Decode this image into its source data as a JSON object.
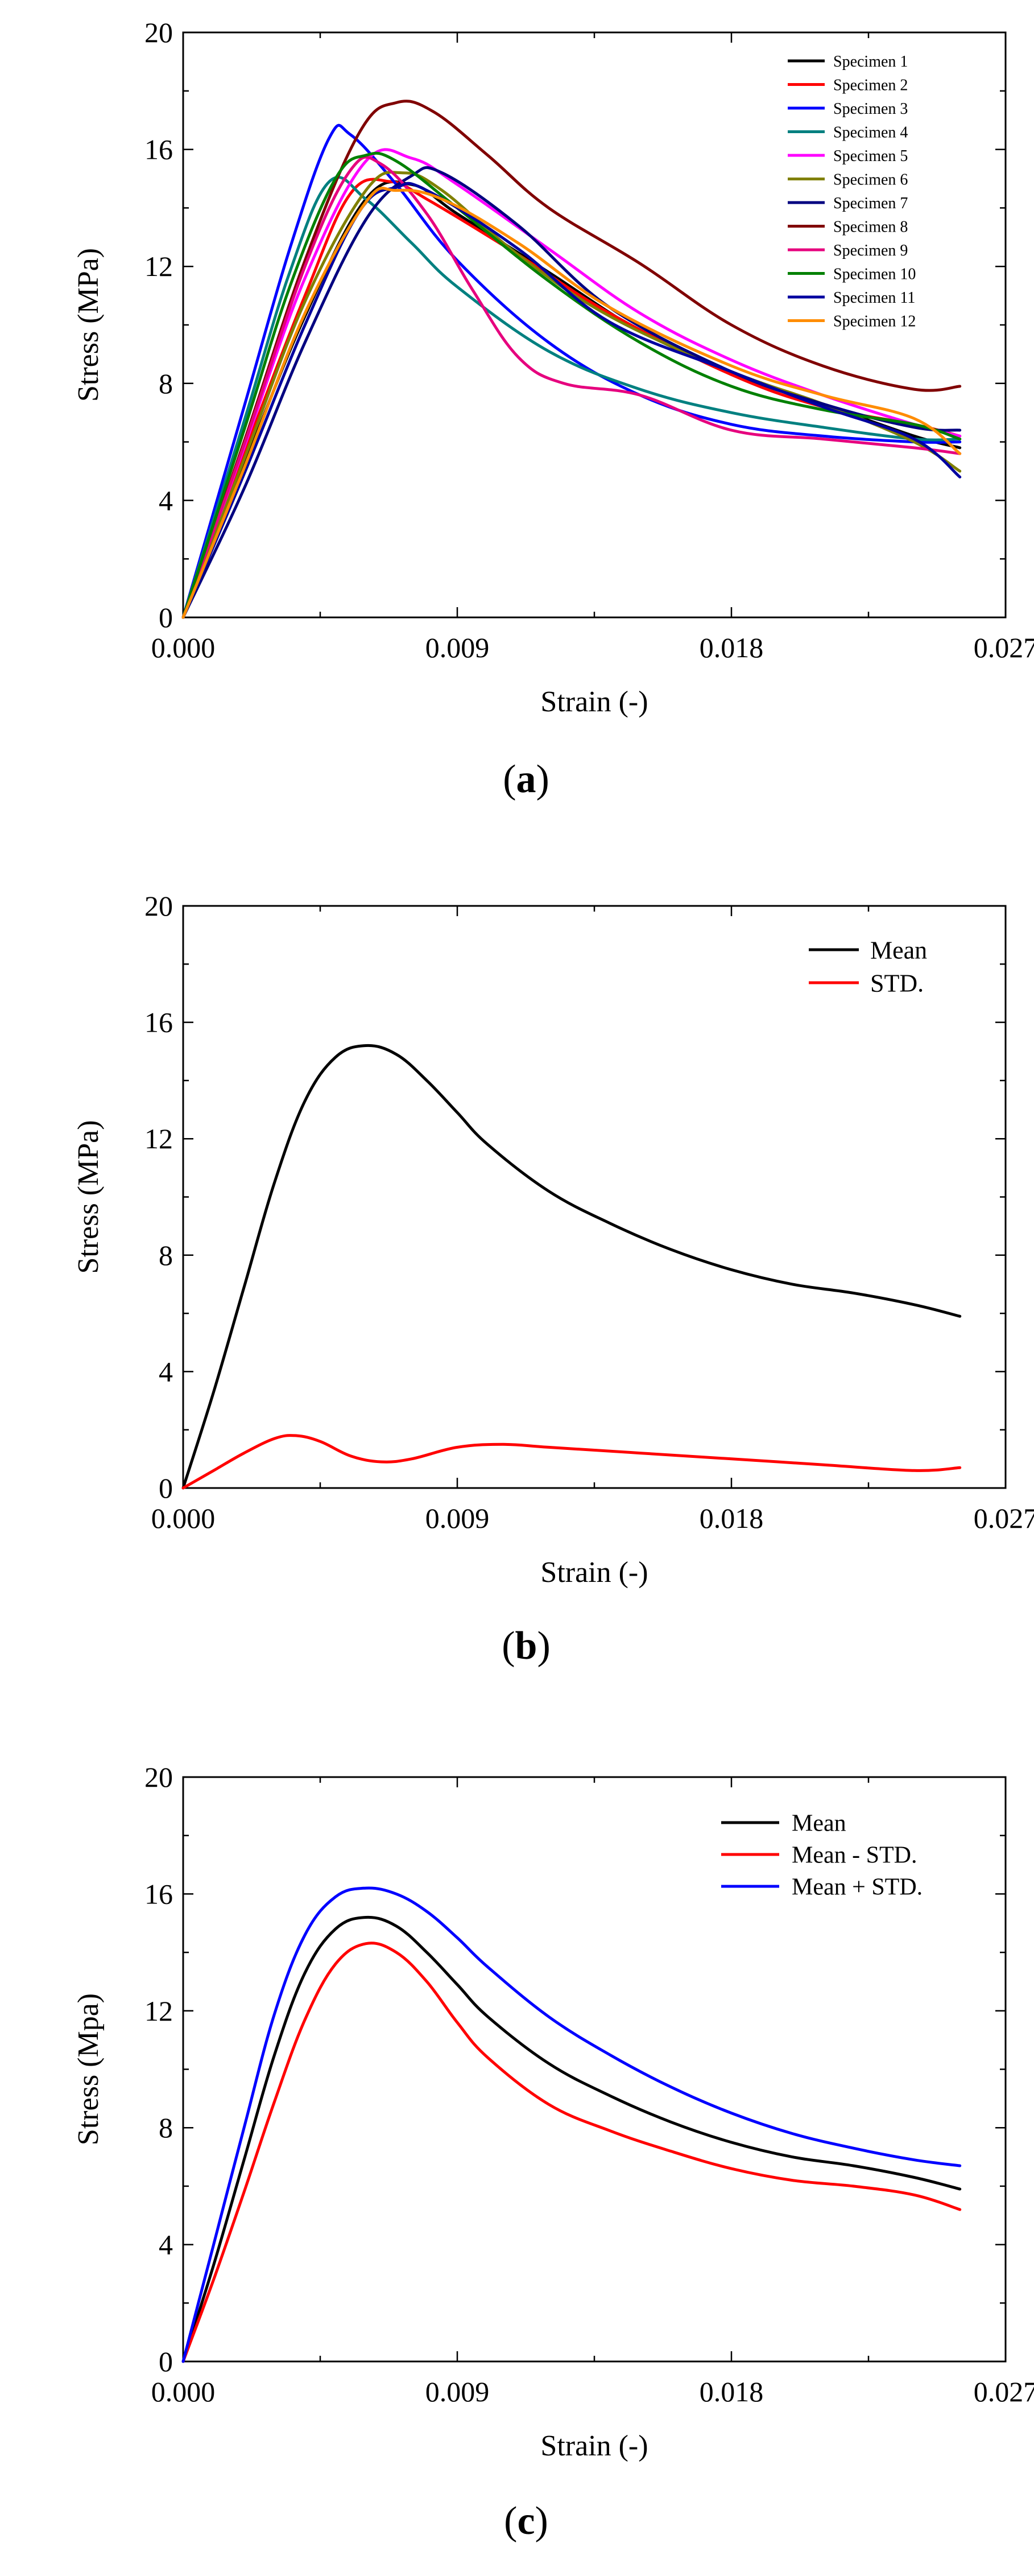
{
  "chart_data": [
    {
      "type": "line",
      "panel_label": "a",
      "title": "",
      "xlabel": "Strain (-)",
      "ylabel": "Stress (MPa)",
      "xlim": [
        0,
        0.027
      ],
      "ylim": [
        0,
        20
      ],
      "xticks": [
        "0.000",
        "0.009",
        "0.018",
        "0.027"
      ],
      "yticks": [
        "0",
        "4",
        "8",
        "12",
        "16",
        "20"
      ],
      "legend_position": "top-right",
      "series": [
        {
          "name": "Specimen 1",
          "color": "#000000",
          "x": [
            0,
            0.002,
            0.004,
            0.006,
            0.0075,
            0.009,
            0.012,
            0.015,
            0.018,
            0.021,
            0.024,
            0.0255
          ],
          "y": [
            0,
            5.2,
            10.3,
            14.3,
            14.8,
            13.8,
            11.8,
            9.8,
            8.4,
            7.3,
            6.2,
            5.8
          ]
        },
        {
          "name": "Specimen 2",
          "color": "#ff0000",
          "x": [
            0,
            0.002,
            0.004,
            0.0055,
            0.0068,
            0.008,
            0.011,
            0.014,
            0.018,
            0.021,
            0.024,
            0.0255
          ],
          "y": [
            0,
            5.6,
            11.0,
            14.5,
            14.9,
            14.3,
            12.4,
            10.4,
            8.3,
            7.2,
            6.6,
            6.2
          ]
        },
        {
          "name": "Specimen 3",
          "color": "#0000ff",
          "x": [
            0,
            0.002,
            0.0035,
            0.0048,
            0.0055,
            0.007,
            0.009,
            0.012,
            0.015,
            0.018,
            0.021,
            0.024,
            0.0255
          ],
          "y": [
            0,
            7.2,
            12.6,
            16.4,
            16.5,
            14.8,
            12.2,
            9.4,
            7.6,
            6.6,
            6.2,
            6.0,
            6.0
          ]
        },
        {
          "name": "Specimen 4",
          "color": "#008080",
          "x": [
            0,
            0.002,
            0.0035,
            0.0048,
            0.006,
            0.0075,
            0.009,
            0.012,
            0.015,
            0.018,
            0.021,
            0.024,
            0.0255
          ],
          "y": [
            0,
            6.7,
            11.8,
            14.9,
            14.3,
            12.8,
            11.3,
            9.1,
            7.8,
            7.0,
            6.5,
            6.1,
            6.1
          ]
        },
        {
          "name": "Specimen 5",
          "color": "#ff00ff",
          "x": [
            0,
            0.002,
            0.004,
            0.006,
            0.0075,
            0.009,
            0.012,
            0.015,
            0.018,
            0.021,
            0.024,
            0.0255
          ],
          "y": [
            0,
            5.8,
            11.6,
            15.6,
            15.7,
            14.8,
            12.6,
            10.4,
            8.8,
            7.6,
            6.6,
            6.2
          ]
        },
        {
          "name": "Specimen 6",
          "color": "#808000",
          "x": [
            0,
            0.002,
            0.004,
            0.006,
            0.0072,
            0.0085,
            0.011,
            0.014,
            0.018,
            0.021,
            0.024,
            0.0255
          ],
          "y": [
            0,
            5.4,
            10.8,
            14.6,
            15.2,
            14.6,
            12.4,
            10.3,
            8.4,
            7.3,
            6.0,
            5.0
          ]
        },
        {
          "name": "Specimen 7",
          "color": "#000080",
          "x": [
            0,
            0.002,
            0.004,
            0.006,
            0.0075,
            0.0085,
            0.011,
            0.014,
            0.018,
            0.021,
            0.024,
            0.0255
          ],
          "y": [
            0,
            4.4,
            9.4,
            13.6,
            15.1,
            15.2,
            13.4,
            10.6,
            8.4,
            7.3,
            6.5,
            6.4
          ]
        },
        {
          "name": "Specimen 8",
          "color": "#800000",
          "x": [
            0,
            0.002,
            0.004,
            0.0058,
            0.007,
            0.0082,
            0.01,
            0.012,
            0.015,
            0.018,
            0.021,
            0.024,
            0.0255
          ],
          "y": [
            0,
            6.0,
            12.2,
            16.6,
            17.6,
            17.3,
            15.8,
            14.0,
            12.1,
            10.0,
            8.6,
            7.8,
            7.9
          ]
        },
        {
          "name": "Specimen 9",
          "color": "#e6007e",
          "x": [
            0,
            0.002,
            0.004,
            0.0055,
            0.0065,
            0.008,
            0.0095,
            0.011,
            0.0125,
            0.015,
            0.018,
            0.021,
            0.024,
            0.0255
          ],
          "y": [
            0,
            5.9,
            12.0,
            15.3,
            15.5,
            13.8,
            11.2,
            8.9,
            8.0,
            7.6,
            6.4,
            6.1,
            5.8,
            5.6
          ]
        },
        {
          "name": "Specimen 10",
          "color": "#008000",
          "x": [
            0,
            0.002,
            0.0035,
            0.005,
            0.006,
            0.007,
            0.009,
            0.012,
            0.015,
            0.018,
            0.021,
            0.024,
            0.0255
          ],
          "y": [
            0,
            6.4,
            11.3,
            15.0,
            15.8,
            15.6,
            14.0,
            11.5,
            9.4,
            7.9,
            7.1,
            6.6,
            6.1
          ]
        },
        {
          "name": "Specimen 11",
          "color": "#0000a0",
          "x": [
            0,
            0.002,
            0.004,
            0.0058,
            0.007,
            0.008,
            0.011,
            0.014,
            0.018,
            0.021,
            0.024,
            0.0255
          ],
          "y": [
            0,
            4.9,
            10.0,
            13.9,
            14.7,
            14.6,
            12.6,
            10.1,
            8.4,
            7.2,
            6.1,
            4.8
          ]
        },
        {
          "name": "Specimen 12",
          "color": "#ff8c00",
          "x": [
            0,
            0.002,
            0.004,
            0.006,
            0.007,
            0.0085,
            0.011,
            0.014,
            0.018,
            0.021,
            0.024,
            0.0255
          ],
          "y": [
            0,
            5.1,
            10.4,
            14.2,
            14.6,
            14.3,
            12.8,
            10.6,
            8.6,
            7.6,
            6.8,
            5.6
          ]
        }
      ]
    },
    {
      "type": "line",
      "panel_label": "b",
      "title": "",
      "xlabel": "Strain (-)",
      "ylabel": "Stress (MPa)",
      "xlim": [
        0,
        0.027
      ],
      "ylim": [
        0,
        20
      ],
      "xticks": [
        "0.000",
        "0.009",
        "0.018",
        "0.027"
      ],
      "yticks": [
        "0",
        "4",
        "8",
        "12",
        "16",
        "20"
      ],
      "legend_position": "top-right",
      "series": [
        {
          "name": "Mean",
          "color": "#000000",
          "x": [
            0,
            0.001,
            0.002,
            0.003,
            0.004,
            0.005,
            0.006,
            0.007,
            0.008,
            0.009,
            0.01,
            0.012,
            0.014,
            0.016,
            0.018,
            0.02,
            0.022,
            0.024,
            0.0255
          ],
          "y": [
            0,
            3.3,
            6.9,
            10.5,
            13.3,
            14.8,
            15.2,
            14.9,
            14.0,
            12.9,
            11.8,
            10.2,
            9.1,
            8.2,
            7.5,
            7.0,
            6.7,
            6.3,
            5.9
          ]
        },
        {
          "name": "STD.",
          "color": "#ff0000",
          "x": [
            0,
            0.001,
            0.002,
            0.003,
            0.0037,
            0.0045,
            0.0055,
            0.0065,
            0.0075,
            0.009,
            0.0105,
            0.012,
            0.015,
            0.018,
            0.021,
            0.024,
            0.0255
          ],
          "y": [
            0,
            0.6,
            1.2,
            1.7,
            1.8,
            1.6,
            1.1,
            0.9,
            1.0,
            1.4,
            1.5,
            1.4,
            1.2,
            1.0,
            0.8,
            0.6,
            0.7
          ]
        }
      ]
    },
    {
      "type": "line",
      "panel_label": "c",
      "title": "",
      "xlabel": "Strain (-)",
      "ylabel": "Stress (Mpa)",
      "xlim": [
        0,
        0.027
      ],
      "ylim": [
        0,
        20
      ],
      "xticks": [
        "0.000",
        "0.009",
        "0.018",
        "0.027"
      ],
      "yticks": [
        "0",
        "4",
        "8",
        "12",
        "16",
        "20"
      ],
      "legend_position": "top-right",
      "series": [
        {
          "name": "Mean",
          "color": "#000000",
          "x": [
            0,
            0.001,
            0.002,
            0.003,
            0.004,
            0.005,
            0.006,
            0.007,
            0.008,
            0.009,
            0.01,
            0.012,
            0.014,
            0.016,
            0.018,
            0.02,
            0.022,
            0.024,
            0.0255
          ],
          "y": [
            0,
            3.3,
            6.9,
            10.5,
            13.3,
            14.8,
            15.2,
            14.9,
            14.0,
            12.9,
            11.8,
            10.2,
            9.1,
            8.2,
            7.5,
            7.0,
            6.7,
            6.3,
            5.9
          ]
        },
        {
          "name": "Mean - STD.",
          "color": "#ff0000",
          "x": [
            0,
            0.001,
            0.002,
            0.003,
            0.004,
            0.005,
            0.006,
            0.007,
            0.008,
            0.009,
            0.01,
            0.012,
            0.014,
            0.016,
            0.018,
            0.02,
            0.022,
            0.024,
            0.0255
          ],
          "y": [
            0,
            2.8,
            5.8,
            8.9,
            11.7,
            13.6,
            14.3,
            14.0,
            13.0,
            11.6,
            10.4,
            8.8,
            7.9,
            7.2,
            6.6,
            6.2,
            6.0,
            5.7,
            5.2
          ]
        },
        {
          "name": "Mean + STD.",
          "color": "#0000ff",
          "x": [
            0,
            0.001,
            0.002,
            0.003,
            0.004,
            0.005,
            0.006,
            0.007,
            0.008,
            0.009,
            0.01,
            0.012,
            0.014,
            0.016,
            0.018,
            0.02,
            0.022,
            0.024,
            0.0255
          ],
          "y": [
            0,
            4.0,
            8.0,
            11.9,
            14.6,
            15.9,
            16.2,
            16.0,
            15.4,
            14.5,
            13.5,
            11.8,
            10.5,
            9.4,
            8.5,
            7.8,
            7.3,
            6.9,
            6.7
          ]
        }
      ]
    }
  ]
}
